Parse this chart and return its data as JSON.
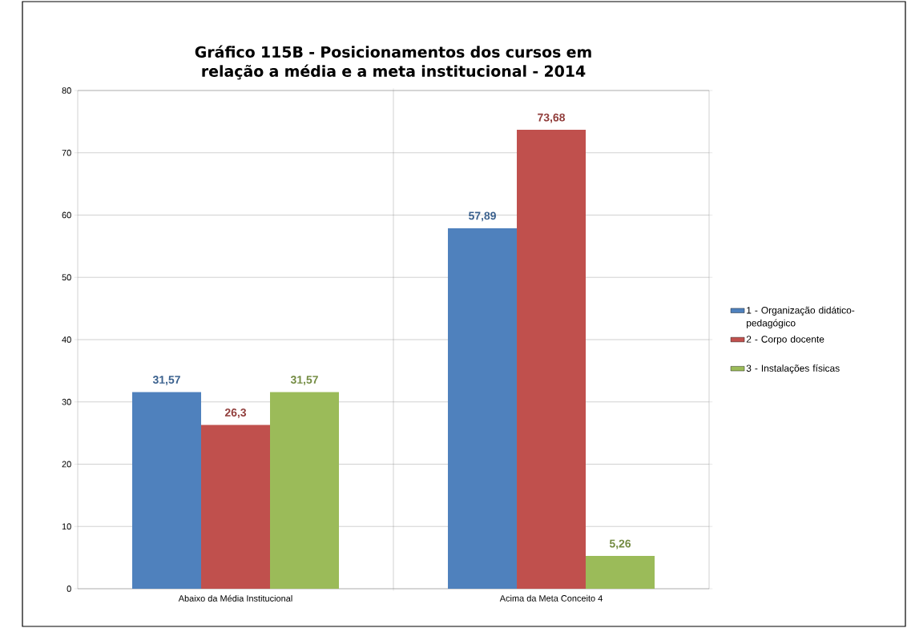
{
  "chart_data": {
    "type": "bar",
    "title": "Gráfico 115B - Posicionamentos dos cursos em relação a média e a meta institucional - 2014",
    "categories": [
      "Abaixo da Média Institucional",
      "Acima da Meta Conceito 4"
    ],
    "series": [
      {
        "name": "1 - Organização didático-pedagógico",
        "color": "#4f81bd",
        "values": [
          31.57,
          57.89
        ],
        "value_labels": [
          "31,57",
          "57,89"
        ]
      },
      {
        "name": "2 - Corpo docente",
        "color": "#c0504d",
        "values": [
          26.3,
          73.68
        ],
        "value_labels": [
          "26,3",
          "73,68"
        ]
      },
      {
        "name": "3 - Instalações físicas",
        "color": "#9bbb59",
        "values": [
          31.57,
          5.26
        ],
        "value_labels": [
          "31,57",
          "5,26"
        ]
      }
    ],
    "ylim": [
      0,
      80
    ],
    "yticks": [
      0,
      10,
      20,
      30,
      40,
      50,
      60,
      70,
      80
    ],
    "grid": true,
    "legend": "right"
  }
}
